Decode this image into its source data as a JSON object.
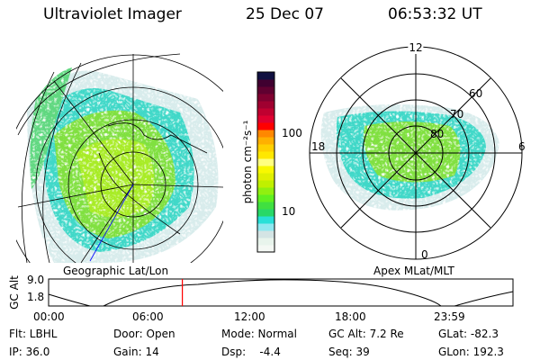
{
  "header": {
    "instrument": "Ultraviolet Imager",
    "date": "25 Dec 07",
    "time": "06:53:32 UT"
  },
  "colorbar": {
    "unit_label": "photon cm⁻²s⁻¹",
    "ticks": [
      "100",
      "10"
    ],
    "colors": [
      "#f4f8f4",
      "#e8f4ec",
      "#d4e4e4",
      "#8ee8f0",
      "#28e0d8",
      "#28d868",
      "#40e040",
      "#60f020",
      "#90f010",
      "#c0f000",
      "#e0f000",
      "#f8f800",
      "#ffff80",
      "#ffe800",
      "#ffd000",
      "#ffb000",
      "#ff8800",
      "#ff0000",
      "#e00030",
      "#c00030",
      "#a00030",
      "#800030",
      "#600030",
      "#400030",
      "#101040"
    ]
  },
  "left_map": {
    "label": "Geographic Lat/Lon"
  },
  "right_map": {
    "label": "Apex MLat/MLT",
    "mlt_labels": [
      "12",
      "6",
      "0",
      "18"
    ],
    "lat_labels": [
      "60",
      "70",
      "80"
    ]
  },
  "timeline": {
    "ylabel": "GC Alt",
    "yticks": [
      "9.0",
      "1.8"
    ],
    "xticks": [
      "00:00",
      "06:00",
      "12:00",
      "18:00",
      "23:59"
    ],
    "current_fraction": 0.288
  },
  "status": {
    "flt": "Flt: LBHL",
    "ip": "IP: 36.0",
    "door": "Door: Open",
    "gain": "Gain: 14",
    "mode": "Mode: Normal",
    "dsp": "Dsp:    -4.4",
    "gcalt": "GC Alt: 7.2 Re",
    "seq": "Seq: 39",
    "glat": "GLat: -82.3",
    "glon": "GLon: 192.3"
  }
}
